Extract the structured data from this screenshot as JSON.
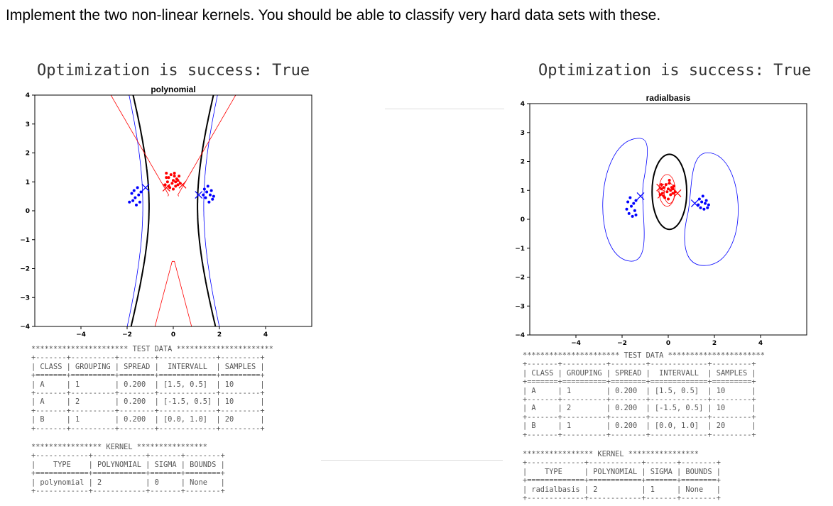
{
  "instruction": "Implement the two non-linear kernels. You should be able to classify very hard data sets with these.",
  "panels": [
    {
      "optimization_text": "Optimization is success: True",
      "test_data_table": "********************** TEST DATA **********************\n+-------+----------+--------+-------------+---------+\n| CLASS | GROUPING | SPREAD |  INTERVALL  | SAMPLES |\n+=======+==========+========+=============+=========+\n| A     | 1        | 0.200  | [1.5, 0.5]  | 10      |\n+-------+----------+--------+-------------+---------+\n| A     | 2        | 0.200  | [-1.5, 0.5] | 10      |\n+-------+----------+--------+-------------+---------+\n| B     | 1        | 0.200  | [0.0, 1.0]  | 20      |\n+-------+----------+--------+-------------+---------+",
      "kernel_table": "**************** KERNEL ****************\n+------------+------------+-------+--------+\n|    TYPE    | POLYNOMIAL | SIGMA | BOUNDS |\n+============+============+=======+========+\n| polynomial | 2          | 0     | None   |\n+------------+------------+-------+--------+"
    },
    {
      "optimization_text": "Optimization is success: True",
      "test_data_table": "********************** TEST DATA **********************\n+-------+----------+--------+-------------+---------+\n| CLASS | GROUPING | SPREAD |  INTERVALL  | SAMPLES |\n+=======+==========+========+=============+=========+\n| A     | 1        | 0.200  | [1.5, 0.5]  | 10      |\n+-------+----------+--------+-------------+---------+\n| A     | 2        | 0.200  | [-1.5, 0.5] | 10      |\n+-------+----------+--------+-------------+---------+\n| B     | 1        | 0.200  | [0.0, 1.0]  | 20      |\n+-------+----------+--------+-------------+---------+",
      "kernel_table": "**************** KERNEL ****************\n+-------------+------------+-------+--------+\n|    TYPE     | POLYNOMIAL | SIGMA | BOUNDS |\n+=============+============+=======+========+\n| radialbasis | 2          | 1     | None   |\n+-------------+------------+-------+--------+"
    }
  ],
  "chart_data": [
    {
      "type": "scatter",
      "title": "polynomial",
      "xlabel": "",
      "ylabel": "",
      "xlim": [
        -6,
        6
      ],
      "ylim": [
        -4,
        4
      ],
      "xticks": [
        -4,
        -2,
        0,
        2,
        4
      ],
      "yticks": [
        -4,
        -3,
        -2,
        -1,
        0,
        1,
        2,
        3,
        4
      ],
      "xtick_labels": [
        "−4",
        "−2",
        "0",
        "2",
        "4"
      ],
      "ytick_labels": [
        "−4",
        "−3",
        "−2",
        "−1",
        "0",
        "1",
        "2",
        "3",
        "4"
      ],
      "grid": false,
      "colors": {
        "class_a": "#0000ff",
        "class_b": "#ff0000",
        "boundary": "#000000",
        "margin_pos": "#ff0000",
        "margin_neg": "#0000ff"
      },
      "series": [
        {
          "marker": "dot",
          "color": "#0000ff",
          "points": [
            [
              -1.9,
              0.3
            ],
            [
              -1.8,
              0.6
            ],
            [
              -1.75,
              0.35
            ],
            [
              -1.7,
              0.7
            ],
            [
              -1.65,
              0.45
            ],
            [
              -1.6,
              0.2
            ],
            [
              -1.55,
              0.8
            ],
            [
              -1.5,
              0.55
            ],
            [
              -1.45,
              0.3
            ],
            [
              -1.4,
              0.65
            ]
          ]
        },
        {
          "marker": "dot",
          "color": "#0000ff",
          "points": [
            [
              1.3,
              0.55
            ],
            [
              1.35,
              0.75
            ],
            [
              1.4,
              0.45
            ],
            [
              1.45,
              0.65
            ],
            [
              1.5,
              0.85
            ],
            [
              1.55,
              0.3
            ],
            [
              1.6,
              0.55
            ],
            [
              1.65,
              0.7
            ],
            [
              1.7,
              0.4
            ],
            [
              1.75,
              0.5
            ]
          ]
        },
        {
          "marker": "dot",
          "color": "#ff0000",
          "points": [
            [
              -0.3,
              1.3
            ],
            [
              -0.25,
              1.0
            ],
            [
              -0.2,
              1.15
            ],
            [
              -0.15,
              0.8
            ],
            [
              -0.1,
              1.25
            ],
            [
              -0.05,
              0.95
            ],
            [
              0,
              1.05
            ],
            [
              0,
              0.75
            ],
            [
              0.05,
              1.2
            ],
            [
              0.1,
              0.85
            ],
            [
              0.1,
              1.0
            ],
            [
              0.15,
              1.1
            ],
            [
              0.2,
              0.9
            ],
            [
              0.25,
              1.2
            ],
            [
              -0.35,
              0.9
            ],
            [
              -0.3,
              1.15
            ],
            [
              0.3,
              0.95
            ],
            [
              -0.2,
              0.85
            ],
            [
              0.05,
              1.3
            ],
            [
              0.2,
              1.05
            ]
          ]
        },
        {
          "marker": "x",
          "color": "#0000ff",
          "points": [
            [
              -1.2,
              0.8
            ],
            [
              1.1,
              0.55
            ]
          ]
        },
        {
          "marker": "x",
          "color": "#ff0000",
          "points": [
            [
              -0.3,
              0.8
            ],
            [
              0.4,
              0.9
            ]
          ]
        }
      ]
    },
    {
      "type": "scatter",
      "title": "radialbasis",
      "xlabel": "",
      "ylabel": "",
      "xlim": [
        -6,
        6
      ],
      "ylim": [
        -4,
        4
      ],
      "xticks": [
        -4,
        -2,
        0,
        2,
        4
      ],
      "yticks": [
        -4,
        -3,
        -2,
        -1,
        0,
        1,
        2,
        3,
        4
      ],
      "xtick_labels": [
        "−4",
        "−2",
        "0",
        "2",
        "4"
      ],
      "ytick_labels": [
        "−4",
        "−3",
        "−2",
        "−1",
        "0",
        "1",
        "2",
        "3",
        "4"
      ],
      "grid": false,
      "colors": {
        "class_a": "#0000ff",
        "class_b": "#ff0000",
        "boundary": "#000000",
        "margin_pos": "#ff0000",
        "margin_neg": "#0000ff"
      },
      "series": [
        {
          "marker": "dot",
          "color": "#0000ff",
          "points": [
            [
              -1.8,
              0.35
            ],
            [
              -1.75,
              0.6
            ],
            [
              -1.7,
              0.2
            ],
            [
              -1.65,
              0.75
            ],
            [
              -1.6,
              0.45
            ],
            [
              -1.55,
              0.1
            ],
            [
              -1.5,
              0.55
            ],
            [
              -1.45,
              0.3
            ],
            [
              -1.4,
              0.65
            ],
            [
              -1.4,
              0.15
            ]
          ]
        },
        {
          "marker": "dot",
          "color": "#0000ff",
          "points": [
            [
              1.3,
              0.5
            ],
            [
              1.35,
              0.7
            ],
            [
              1.4,
              0.4
            ],
            [
              1.45,
              0.6
            ],
            [
              1.5,
              0.8
            ],
            [
              1.55,
              0.35
            ],
            [
              1.6,
              0.55
            ],
            [
              1.65,
              0.65
            ],
            [
              1.7,
              0.4
            ],
            [
              1.75,
              0.5
            ]
          ]
        },
        {
          "marker": "dot",
          "color": "#ff0000",
          "points": [
            [
              -0.3,
              1.2
            ],
            [
              -0.25,
              0.9
            ],
            [
              -0.2,
              1.1
            ],
            [
              -0.15,
              0.75
            ],
            [
              -0.1,
              1.2
            ],
            [
              -0.05,
              0.95
            ],
            [
              0,
              1.05
            ],
            [
              0,
              0.7
            ],
            [
              0.05,
              1.25
            ],
            [
              0.1,
              0.85
            ],
            [
              0.1,
              1.0
            ],
            [
              0.15,
              1.1
            ],
            [
              0.2,
              0.9
            ],
            [
              0.25,
              1.15
            ],
            [
              -0.35,
              0.85
            ],
            [
              -0.3,
              1.05
            ],
            [
              0.3,
              0.95
            ],
            [
              -0.2,
              0.8
            ],
            [
              0.05,
              1.35
            ],
            [
              0.2,
              1.05
            ]
          ]
        },
        {
          "marker": "x",
          "color": "#0000ff",
          "points": [
            [
              -1.2,
              0.8
            ],
            [
              1.15,
              0.55
            ]
          ]
        },
        {
          "marker": "x",
          "color": "#ff0000",
          "points": [
            [
              -0.35,
              1.1
            ],
            [
              -0.3,
              0.85
            ],
            [
              0.4,
              0.9
            ]
          ]
        }
      ]
    }
  ]
}
